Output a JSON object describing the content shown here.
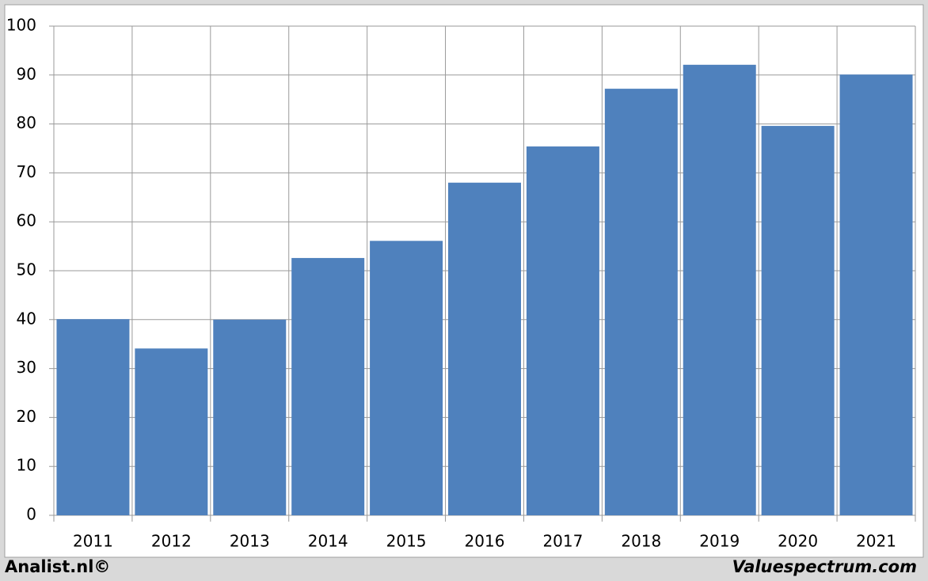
{
  "chart_data": {
    "type": "bar",
    "categories": [
      "2011",
      "2012",
      "2013",
      "2014",
      "2015",
      "2016",
      "2017",
      "2018",
      "2019",
      "2020",
      "2021"
    ],
    "values": [
      40.1,
      34.1,
      40.0,
      52.6,
      56.1,
      68.0,
      75.4,
      87.2,
      92.1,
      79.6,
      90.1
    ],
    "color": "#4f81bd",
    "ylim": [
      0,
      100
    ],
    "yticks": [
      0,
      10,
      20,
      30,
      40,
      50,
      60,
      70,
      80,
      90,
      100
    ],
    "grid": true,
    "footer_left": "Analist.nl©",
    "footer_right": "Valuespectrum.com"
  }
}
